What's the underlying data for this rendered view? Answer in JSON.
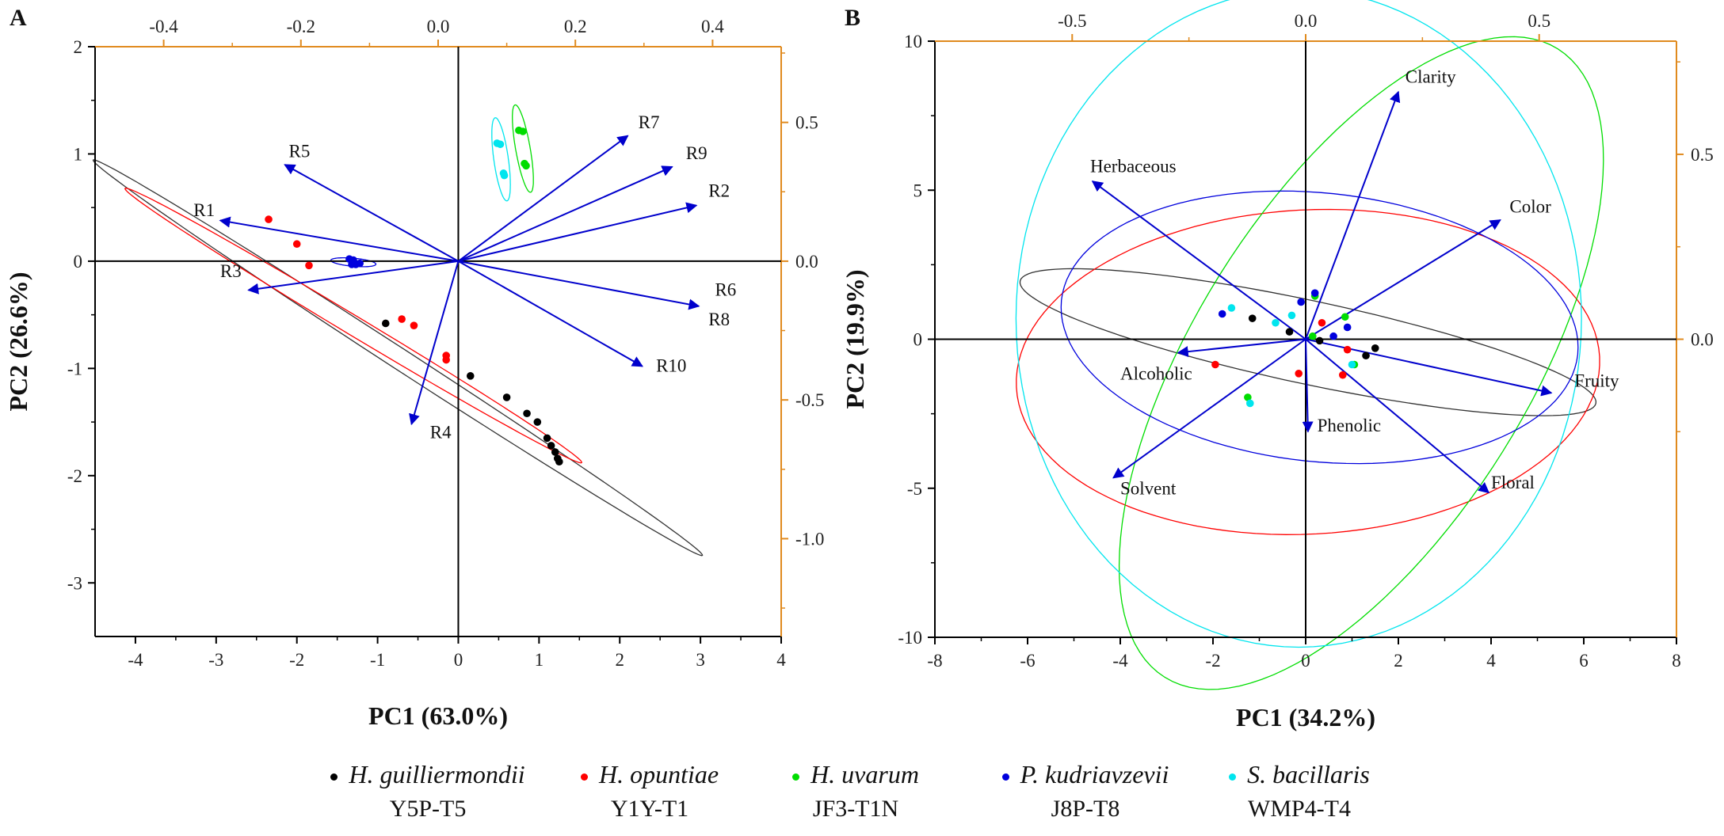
{
  "chart_data": [
    {
      "type": "scatter",
      "panel": "A",
      "xlabel": "PC1 (63.0%)",
      "ylabel": "PC2 (26.6%)",
      "xlim": [
        -4.5,
        4
      ],
      "ylim": [
        -3.5,
        2
      ],
      "xticks": [
        -4,
        -3,
        -2,
        -1,
        0,
        1,
        2,
        3,
        4
      ],
      "yticks": [
        -3,
        -2,
        -1,
        0,
        1,
        2
      ],
      "top_xlim": [
        -0.5,
        0.5
      ],
      "top_xticks": [
        -0.4,
        -0.2,
        0.0,
        0.2,
        0.4
      ],
      "top_tick_labels": [
        "-0.4",
        "-0.2",
        "0.0",
        "0.2",
        "0.4"
      ],
      "right_ylim": [
        -1.3525,
        0.7728
      ],
      "right_yticks": [
        -1.0,
        -0.5,
        0.0,
        0.5
      ],
      "right_tick_labels": [
        "-1.0",
        "-0.5",
        "0.0",
        "0.5"
      ],
      "loadings": [
        {
          "name": "R1",
          "x": -2.95,
          "y": 0.38,
          "lx": -3.28,
          "ly": 0.42
        },
        {
          "name": "R2",
          "x": 2.95,
          "y": 0.52,
          "lx": 3.1,
          "ly": 0.6
        },
        {
          "name": "R3",
          "x": -2.6,
          "y": -0.27,
          "lx": -2.95,
          "ly": -0.15
        },
        {
          "name": "R4",
          "x": -0.58,
          "y": -1.52,
          "lx": -0.35,
          "ly": -1.65
        },
        {
          "name": "R5",
          "x": -2.15,
          "y": 0.9,
          "lx": -2.1,
          "ly": 0.97
        },
        {
          "name": "R6",
          "x": 2.98,
          "y": -0.42,
          "lx": 3.18,
          "ly": -0.32
        },
        {
          "name": "R7",
          "x": 2.1,
          "y": 1.17,
          "lx": 2.23,
          "ly": 1.24
        },
        {
          "name": "R8",
          "x": null,
          "y": null,
          "lx": 3.1,
          "ly": -0.6
        },
        {
          "name": "R9",
          "x": 2.65,
          "y": 0.88,
          "lx": 2.82,
          "ly": 0.95
        },
        {
          "name": "R10",
          "x": 2.28,
          "y": -0.98,
          "lx": 2.45,
          "ly": -1.03
        }
      ],
      "series": [
        {
          "name": "H. guilliermondii",
          "color": "#000000",
          "points": [
            [
              -0.9,
              -0.58
            ],
            [
              0.15,
              -1.07
            ],
            [
              0.6,
              -1.27
            ],
            [
              0.85,
              -1.42
            ],
            [
              0.98,
              -1.5
            ],
            [
              1.1,
              -1.65
            ],
            [
              1.15,
              -1.72
            ],
            [
              1.2,
              -1.78
            ],
            [
              1.23,
              -1.84
            ],
            [
              1.25,
              -1.87
            ]
          ],
          "ellipse": {
            "cx": -0.75,
            "cy": -0.9,
            "rx": 4.5,
            "ry": 0.13,
            "angle": -33
          }
        },
        {
          "name": "H. opuntiae",
          "color": "#ff0000",
          "points": [
            [
              -2.35,
              0.39
            ],
            [
              -2.0,
              0.16
            ],
            [
              -1.85,
              -0.04
            ],
            [
              -0.7,
              -0.54
            ],
            [
              -0.55,
              -0.6
            ],
            [
              -0.15,
              -0.88
            ],
            [
              -0.15,
              -0.92
            ]
          ],
          "ellipse": {
            "cx": -1.3,
            "cy": -0.6,
            "rx": 3.3,
            "ry": 0.12,
            "angle": -31
          }
        },
        {
          "name": "H. uvarum",
          "color": "#00dd00",
          "points": [
            [
              0.75,
              1.22
            ],
            [
              0.8,
              1.21
            ],
            [
              0.82,
              0.91
            ],
            [
              0.84,
              0.89
            ]
          ],
          "ellipse": {
            "cx": 0.8,
            "cy": 1.05,
            "rx": 0.09,
            "ry": 0.55,
            "angle": 10
          }
        },
        {
          "name": "P. kudriavzevii",
          "color": "#0000dd",
          "points": [
            [
              -1.35,
              0.02
            ],
            [
              -1.3,
              0.01
            ],
            [
              -1.27,
              -0.03
            ],
            [
              -1.32,
              -0.03
            ],
            [
              -1.22,
              -0.02
            ]
          ],
          "ellipse": {
            "cx": -1.3,
            "cy": -0.01,
            "rx": 0.28,
            "ry": 0.05,
            "angle": -5
          }
        },
        {
          "name": "S. bacillaris",
          "color": "#00e5ee",
          "points": [
            [
              0.48,
              1.1
            ],
            [
              0.52,
              1.09
            ],
            [
              0.56,
              0.82
            ],
            [
              0.57,
              0.8
            ]
          ],
          "ellipse": {
            "cx": 0.53,
            "cy": 0.95,
            "rx": 0.09,
            "ry": 0.52,
            "angle": 8
          }
        }
      ]
    },
    {
      "type": "scatter",
      "panel": "B",
      "xlabel": "PC1 (34.2%)",
      "ylabel": "PC2 (19.9%)",
      "xlim": [
        -8,
        8
      ],
      "ylim": [
        -10,
        10
      ],
      "xticks": [
        -8,
        -6,
        -4,
        -2,
        0,
        2,
        4,
        6,
        8
      ],
      "yticks": [
        -10,
        -5,
        0,
        5,
        10
      ],
      "top_xlim": [
        -0.794,
        0.794
      ],
      "top_xticks": [
        -0.5,
        0.0,
        0.5
      ],
      "top_tick_labels": [
        "-0.5",
        "0.0",
        "0.5"
      ],
      "right_ylim": [
        -0.806,
        0.806
      ],
      "right_yticks": [
        0.0,
        0.5
      ],
      "right_tick_labels": [
        "0.0",
        "0.5"
      ],
      "loadings": [
        {
          "name": "Clarity",
          "x": 2.0,
          "y": 8.3,
          "lx": 2.15,
          "ly": 8.6
        },
        {
          "name": "Herbaceous",
          "x": -4.6,
          "y": 5.3,
          "lx": -4.65,
          "ly": 5.6
        },
        {
          "name": "Color",
          "x": 4.2,
          "y": 4.0,
          "lx": 4.4,
          "ly": 4.25
        },
        {
          "name": "Alcoholic",
          "x": -2.75,
          "y": -0.45,
          "lx": -4.0,
          "ly": -1.35
        },
        {
          "name": "Fruity",
          "x": 5.3,
          "y": -1.8,
          "lx": 5.8,
          "ly": -1.6
        },
        {
          "name": "Phenolic",
          "x": 0.05,
          "y": -3.1,
          "lx": 0.25,
          "ly": -3.1
        },
        {
          "name": "Solvent",
          "x": -4.15,
          "y": -4.65,
          "lx": -4.0,
          "ly": -5.2
        },
        {
          "name": "Floral",
          "x": 3.95,
          "y": -5.15,
          "lx": 4.0,
          "ly": -5.0
        }
      ],
      "series": [
        {
          "name": "H. guilliermondii",
          "color": "#000000",
          "points": [
            [
              -1.15,
              0.7
            ],
            [
              -0.35,
              0.25
            ],
            [
              1.5,
              -0.3
            ],
            [
              1.3,
              -0.55
            ],
            [
              0.3,
              -0.05
            ]
          ],
          "ellipse": {
            "cx": 0.05,
            "cy": -0.1,
            "rx": 6.35,
            "ry": 0.9,
            "angle": -12
          }
        },
        {
          "name": "H. opuntiae",
          "color": "#ff0000",
          "points": [
            [
              -1.95,
              -0.85
            ],
            [
              -0.15,
              -1.15
            ],
            [
              0.35,
              0.55
            ],
            [
              0.8,
              -1.2
            ],
            [
              0.9,
              -0.35
            ]
          ],
          "ellipse": {
            "cx": 0.05,
            "cy": -1.1,
            "rx": 6.3,
            "ry": 3.5,
            "angle": 3
          }
        },
        {
          "name": "H. uvarum",
          "color": "#00dd00",
          "points": [
            [
              0.2,
              1.45
            ],
            [
              0.85,
              0.75
            ],
            [
              1.05,
              -0.85
            ],
            [
              -1.25,
              -1.95
            ],
            [
              0.15,
              0.1
            ]
          ],
          "ellipse": {
            "cx": 1.2,
            "cy": -0.8,
            "rx": 8.0,
            "ry": 3.6,
            "angle": 58
          }
        },
        {
          "name": "P. kudriavzevii",
          "color": "#0000dd",
          "points": [
            [
              -1.8,
              0.85
            ],
            [
              0.2,
              1.55
            ],
            [
              0.9,
              0.4
            ],
            [
              0.6,
              0.1
            ],
            [
              -0.1,
              1.25
            ]
          ],
          "ellipse": {
            "cx": 0.3,
            "cy": 0.4,
            "rx": 5.6,
            "ry": 2.9,
            "angle": -6
          }
        },
        {
          "name": "S. bacillaris",
          "color": "#00e5ee",
          "points": [
            [
              -1.6,
              1.05
            ],
            [
              -0.65,
              0.55
            ],
            [
              -0.3,
              0.8
            ],
            [
              1.0,
              -0.85
            ],
            [
              -1.2,
              -2.15
            ]
          ],
          "ellipse": {
            "cx": -0.15,
            "cy": 0.7,
            "rx": 6.1,
            "ry": 7.1,
            "angle": 0
          }
        }
      ]
    }
  ],
  "legend": [
    {
      "species": "H. guilliermondii",
      "code": "Y5P-T5",
      "color": "#000000"
    },
    {
      "species": "H. opuntiae",
      "code": "Y1Y-T1",
      "color": "#ff0000"
    },
    {
      "species": "H. uvarum",
      "code": "JF3-T1N",
      "color": "#00dd00"
    },
    {
      "species": "P. kudriavzevii",
      "code": "J8P-T8",
      "color": "#0000dd"
    },
    {
      "species": "S. bacillaris",
      "code": "WMP4-T4",
      "color": "#00e5ee"
    }
  ],
  "colors": {
    "vector": "#0000cc",
    "secondary_axis": "#e08a1e",
    "axis": "#000000"
  }
}
